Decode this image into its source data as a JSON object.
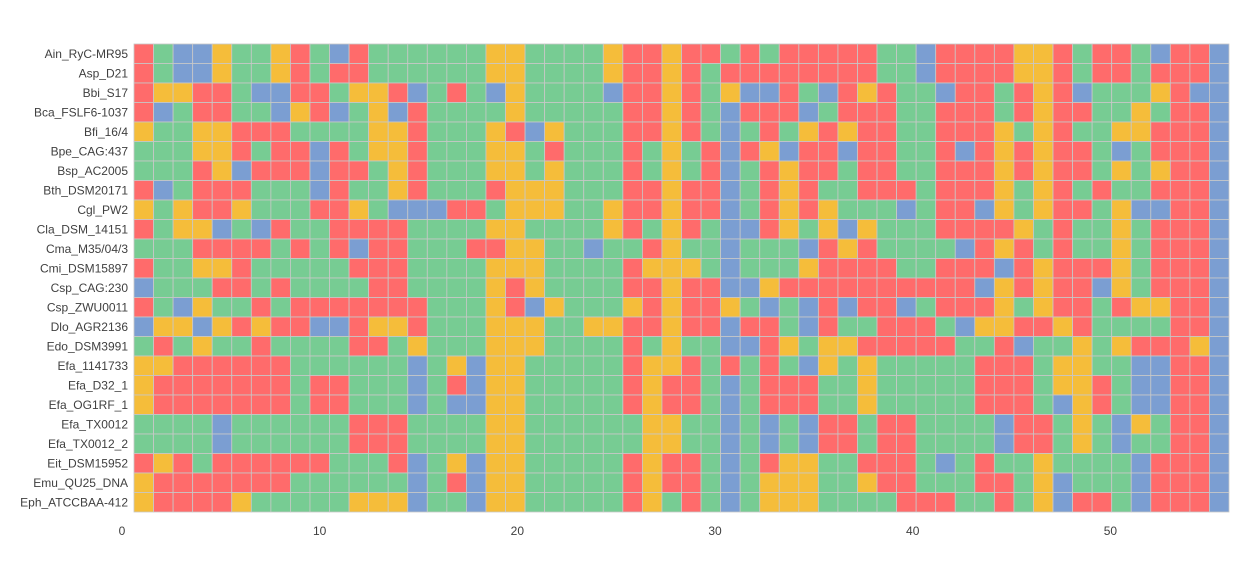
{
  "chart_data": {
    "type": "heatmap",
    "title": "",
    "xlabel": "",
    "ylabel": "",
    "xlim": [
      0,
      56
    ],
    "xticks": [
      "0",
      "10",
      "20",
      "30",
      "40",
      "50"
    ],
    "legend": "none",
    "grid": true,
    "categories_palette": {
      "R": "#ff6b6b",
      "G": "#77cc93",
      "Y": "#f5bd3a",
      "B": "#7b9ed2"
    },
    "rows": [
      "Ain_RyC-MR95",
      "Asp_D21",
      "Bbi_S17",
      "Bca_FSLF6-1037",
      "Bfi_16/4",
      "Bpe_CAG:437",
      "Bsp_AC2005",
      "Bth_DSM20171",
      "Cgl_PW2",
      "Cla_DSM_14151",
      "Cma_M35/04/3",
      "Cmi_DSM15897",
      "Csp_CAG:230",
      "Csp_ZWU0011",
      "Dlo_AGR2136",
      "Edo_DSM3991",
      "Efa_1141733",
      "Efa_D32_1",
      "Efa_OG1RF_1",
      "Efa_TX0012",
      "Efa_TX0012_2",
      "Eit_DSM15952",
      "Emu_QU25_DNA",
      "Eph_ATCCBAA-412"
    ],
    "cells": [
      "RGBBYGGYRGBRGGGGGGYYGGGGYRRYRRGRGRRRRRGGBRRRRYYRGRRGBRRB",
      "RGBBYGGYRGRRGGGGGGYYGGGGYRRYRGRRRRRRRRGGBRRRRYYRGRRGRRRB",
      "RYYRRGBBRRGYYRBGRGBYGGGGBRRYRGYBBRGBRYRGGBRRGRYRBGGGYRBB",
      "RBGRRGGBYRBGYBRGGGGYGGGGGRRYRGBRRRBGRRRGGRRRGRYRRGGYGRRB",
      "YGGYYRRRGGGGYYRGGGYRBYGGGRRYRGBGRGYRYRRGGRRRYGYRGGYYRRRB",
      "GGGYYRGRRBRGYYRGGGYYGRGGGRGYGRBRYBRRBRRGGRBRYRYRRGBGRRRB",
      "GGGRYBRRRBRRGYRGGGYYGYGGGRGYGRBGRYRRGRRGGRRRYRYRRGYGYRRB",
      "RBGRRRGGGBRGGYRGGGRYYYGGGRRYRRBGRYRGGRRRGRRRYGYRGRGGRRRB",
      "YGYRRYGGGRRYGBBBRRGYYYGGYRRYRRBGRYRYGGGBGRRBYGYRRGYBBRRB",
      "RGYYBGBRGGRRRRGGGGYYGGGGYRGYRGBBRYGYBYGGGRRRRYGRGGYGRRRB",
      "GGGRRRRGRGRBRRGGGRRYYGGBGGRYGGBGGGBRYRGGGGBRYRGRGGYGRRRB",
      "RGGYYRGGGGGRRRGGGGYYYGGGGRYYYGBGGGYRRRRGGRRRBRYRRRYGRRRB",
      "BGGGRRGRGGGGRRGGGGYRYGGGGRRYRRBBYRRRRRRRRRRBYRYRRBYGRRRB",
      "RGBYGGRGRRRRRRRGGGYRBYGGGYRYRRYGBGBRBRRBGRRRYGYRRGRYYRRB",
      "BYYBYRYRRBBRYYRGGGYYYGGYYRRYRRBRRGBRGGRRRGBYYRRYRGGGGRRB",
      "GRGYGGRGGGGRRGYGGGYYYGGGGRGYGGBBRYGYYRRRRRGGRBGGYGYRRRYB",
      "YYRRRRRRGGGGGGBGYBYYGGGGGRYYRGRGRGBYGYGGGGGRRRGYYGGBBRRB",
      "YRRRRRRRGRRGGGBGRBYYGGGGGRYRRGBGRRRGGYGGGGGRRRGYYRGBBRRB",
      "YRRRRRRRGRRGGGBGBBYYGGGGGRYRRGBGRRRGGYGGGGGRRRGBYRGBBRRB",
      "GGGGBGGGGGGRRRGGGGYYGGGGGGYYGGBGBGBRRGRRGGGGBRRGYGBYGRRB",
      "GGGGBGGGGGGRRRGGGGYYGGGGGGYYGGBGBGBRRGRRGGGGBRRGYGBGGRRB",
      "RYRGRRRRRRGGGRBGYBYYGGGGGRYRRGBGRYYGGRRRGBGRGGYGGGGBRRRB",
      "YRRRRRRRGGGGGGBGRBYYGGGGGRYRRGBGYYYGGYRRGGGRRGYBGGGBRRRB",
      "YRRRRYGGGGGYYYBGGBYYGGGGGRYGRGBGYYYGGGGRRRGGRGYBRRGBRRRB"
    ]
  }
}
